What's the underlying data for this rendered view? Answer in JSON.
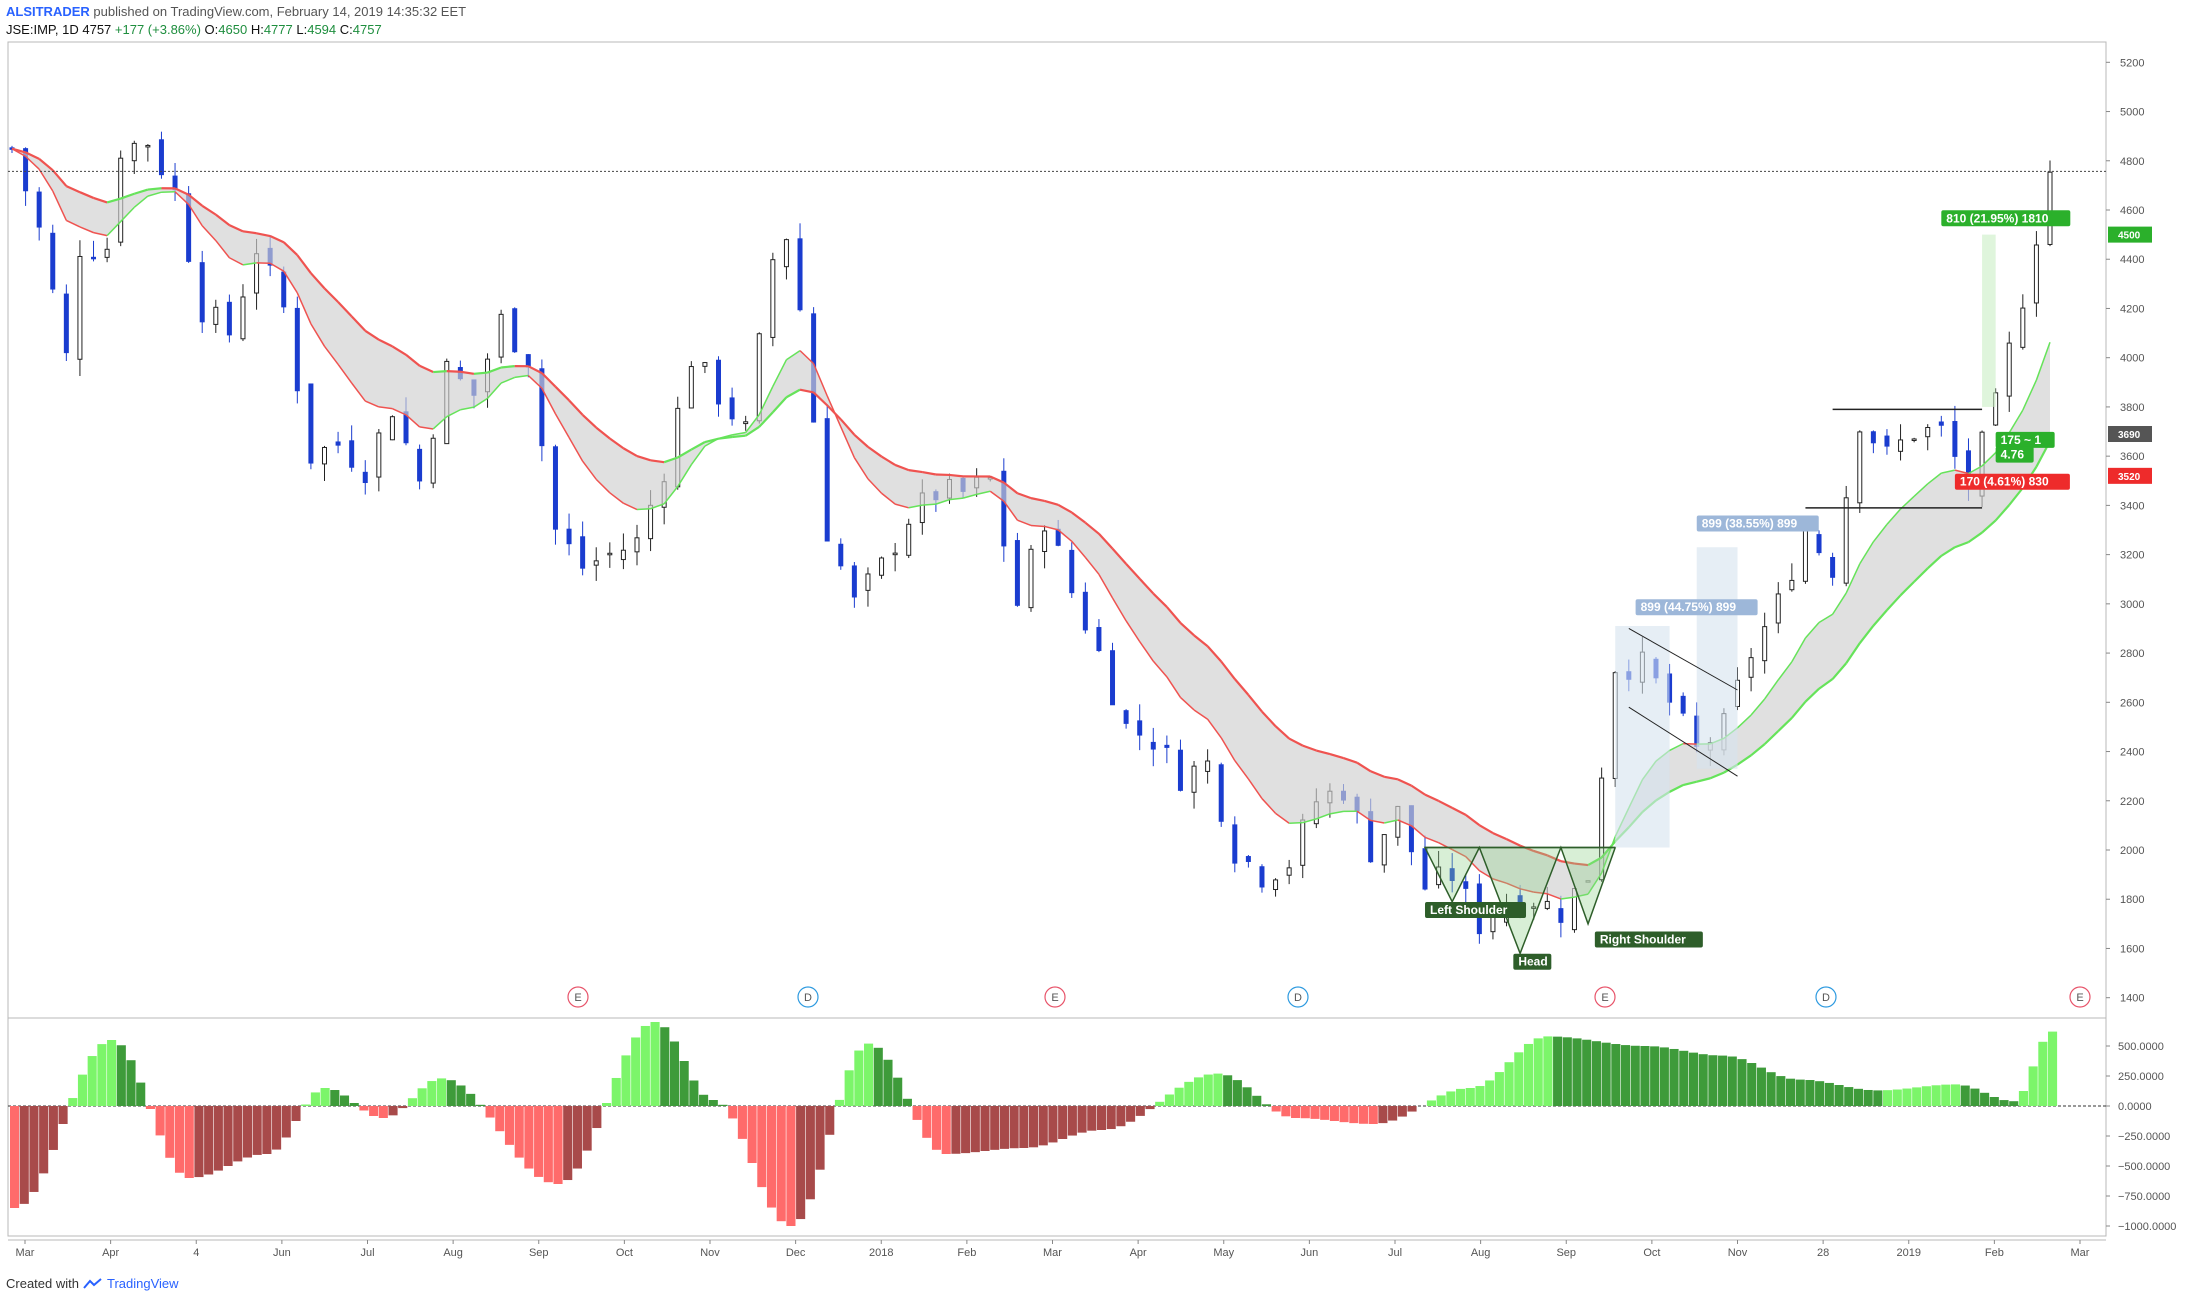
{
  "header": {
    "author": "ALSITRADER",
    "published": "published on TradingView.com, February 14, 2019 14:35:32 EET",
    "symbol_line": "JSE:IMP, 1D",
    "last": "4757",
    "change": "+177 (+3.86%)",
    "o_label": "O:",
    "o_value": "4650",
    "h_label": "H:",
    "h_value": "4777",
    "l_label": "L:",
    "l_value": "4594",
    "c_label": "C:",
    "c_value": "4757"
  },
  "footer": {
    "created_with": "Created with",
    "brand": "TradingView"
  },
  "colors": {
    "up": "#222222",
    "down": "#1a3ccf",
    "ma_red": "#ef5350",
    "ma_green": "#66e35a",
    "hist_pos_light": "#7cf56a",
    "hist_pos_dark": "#3e9b3a",
    "hist_neg_light": "#ff6b6b",
    "hist_neg_dark": "#a84a4a"
  },
  "chart_data": [
    {
      "type": "candlestick",
      "title": "",
      "y_axis_ticks": [
        5200,
        5000,
        4800,
        4600,
        4400,
        4200,
        4000,
        3800,
        3600,
        3400,
        3200,
        3000,
        2800,
        2600,
        2400,
        2200,
        2000,
        1800,
        1600,
        1400
      ],
      "ylim": [
        1350,
        5250
      ],
      "x_axis_labels": [
        "Mar",
        "Apr",
        "4",
        "Jun",
        "Jul",
        "Aug",
        "Sep",
        "Oct",
        "Nov",
        "Dec",
        "2018",
        "Feb",
        "Mar",
        "Apr",
        "May",
        "Jun",
        "Jul",
        "Aug",
        "Sep",
        "Oct",
        "Nov",
        "28",
        "2019",
        "Feb",
        "Mar"
      ],
      "price_path": [
        [
          0,
          4850
        ],
        [
          2,
          4520
        ],
        [
          4,
          4000
        ],
        [
          5,
          4450
        ],
        [
          7,
          4450
        ],
        [
          8,
          4850
        ],
        [
          10,
          4880
        ],
        [
          12,
          4670
        ],
        [
          14,
          4200
        ],
        [
          16,
          4100
        ],
        [
          18,
          4450
        ],
        [
          20,
          4200
        ],
        [
          22,
          3600
        ],
        [
          24,
          3650
        ],
        [
          26,
          3550
        ],
        [
          28,
          3800
        ],
        [
          30,
          3500
        ],
        [
          32,
          3950
        ],
        [
          34,
          3850
        ],
        [
          36,
          4150
        ],
        [
          38,
          4000
        ],
        [
          40,
          3300
        ],
        [
          42,
          3150
        ],
        [
          44,
          3200
        ],
        [
          46,
          3250
        ],
        [
          48,
          3550
        ],
        [
          50,
          4000
        ],
        [
          52,
          3850
        ],
        [
          54,
          3700
        ],
        [
          56,
          4400
        ],
        [
          57,
          4500
        ],
        [
          58,
          4200
        ],
        [
          60,
          3300
        ],
        [
          62,
          3000
        ],
        [
          64,
          3150
        ],
        [
          66,
          3350
        ],
        [
          68,
          3450
        ],
        [
          70,
          3450
        ],
        [
          72,
          3500
        ],
        [
          74,
          3000
        ],
        [
          76,
          3350
        ],
        [
          78,
          3050
        ],
        [
          80,
          2800
        ],
        [
          82,
          2500
        ],
        [
          84,
          2450
        ],
        [
          86,
          2300
        ],
        [
          88,
          2350
        ],
        [
          90,
          2000
        ],
        [
          92,
          1900
        ],
        [
          94,
          1950
        ],
        [
          96,
          2200
        ],
        [
          98,
          2250
        ],
        [
          100,
          2000
        ],
        [
          102,
          2150
        ],
        [
          104,
          1850
        ],
        [
          106,
          1900
        ],
        [
          108,
          1700
        ],
        [
          110,
          1800
        ],
        [
          112,
          1800
        ],
        [
          114,
          1750
        ],
        [
          116,
          1900
        ],
        [
          118,
          2750
        ],
        [
          120,
          2750
        ],
        [
          122,
          2600
        ],
        [
          124,
          2400
        ],
        [
          126,
          2500
        ],
        [
          128,
          2800
        ],
        [
          130,
          3000
        ],
        [
          132,
          3300
        ],
        [
          134,
          3150
        ],
        [
          136,
          3750
        ],
        [
          138,
          3600
        ],
        [
          140,
          3700
        ],
        [
          142,
          3700
        ],
        [
          144,
          3480
        ],
        [
          146,
          3800
        ],
        [
          148,
          4250
        ],
        [
          150,
          4757
        ]
      ],
      "annotations": [
        {
          "text": "Left Shoulder",
          "color": "#2e5e2a"
        },
        {
          "text": "Head",
          "color": "#2e5e2a"
        },
        {
          "text": "Right Shoulder",
          "color": "#2e5e2a"
        },
        {
          "text": "899 (44.75%) 899",
          "color": "#9db7d9"
        },
        {
          "text": "899 (38.55%) 899",
          "color": "#9db7d9"
        },
        {
          "text": "810 (21.95%) 1810",
          "color": "#2bb02b"
        },
        {
          "text": "175 ~ 1",
          "color": "#2bb02b"
        },
        {
          "text": "4.76",
          "color": "#2bb02b"
        },
        {
          "text": "170 (4.61%) 830",
          "color": "#ee2b2b"
        }
      ],
      "price_badges": [
        {
          "text": "4500",
          "color": "#2bb02b",
          "value": 4500
        },
        {
          "text": "3690",
          "color": "#555555",
          "value": 3690
        },
        {
          "text": "3520",
          "color": "#ee2b2b",
          "value": 3520
        }
      ],
      "event_markers": [
        {
          "label": "E",
          "color": "#e8556b"
        },
        {
          "label": "D",
          "color": "#2f9be0"
        },
        {
          "label": "E",
          "color": "#e8556b"
        },
        {
          "label": "D",
          "color": "#2f9be0"
        },
        {
          "label": "E",
          "color": "#e8556b"
        },
        {
          "label": "D",
          "color": "#2f9be0"
        },
        {
          "label": "E",
          "color": "#e8556b"
        }
      ],
      "current_price_line": 4757
    },
    {
      "type": "bar",
      "title": "",
      "y_axis_ticks": [
        "500.0000",
        "250.0000",
        "0.0000",
        "−250.0000",
        "−500.0000",
        "−750.0000",
        "−1000.0000"
      ],
      "ylim": [
        -1000,
        650
      ],
      "waves": [
        [
          0,
          -850
        ],
        [
          5,
          550
        ],
        [
          9,
          -600
        ],
        [
          13,
          -400
        ],
        [
          16,
          150
        ],
        [
          19,
          -100
        ],
        [
          22,
          230
        ],
        [
          28,
          -650
        ],
        [
          33,
          700
        ],
        [
          36,
          50
        ],
        [
          40,
          -1000
        ],
        [
          44,
          520
        ],
        [
          48,
          -400
        ],
        [
          52,
          -350
        ],
        [
          56,
          -200
        ],
        [
          62,
          270
        ],
        [
          66,
          -100
        ],
        [
          70,
          -150
        ],
        [
          75,
          150
        ],
        [
          79,
          580
        ],
        [
          84,
          500
        ],
        [
          88,
          420
        ],
        [
          92,
          220
        ],
        [
          96,
          130
        ],
        [
          100,
          180
        ],
        [
          103,
          40
        ],
        [
          105,
          620
        ]
      ]
    }
  ]
}
